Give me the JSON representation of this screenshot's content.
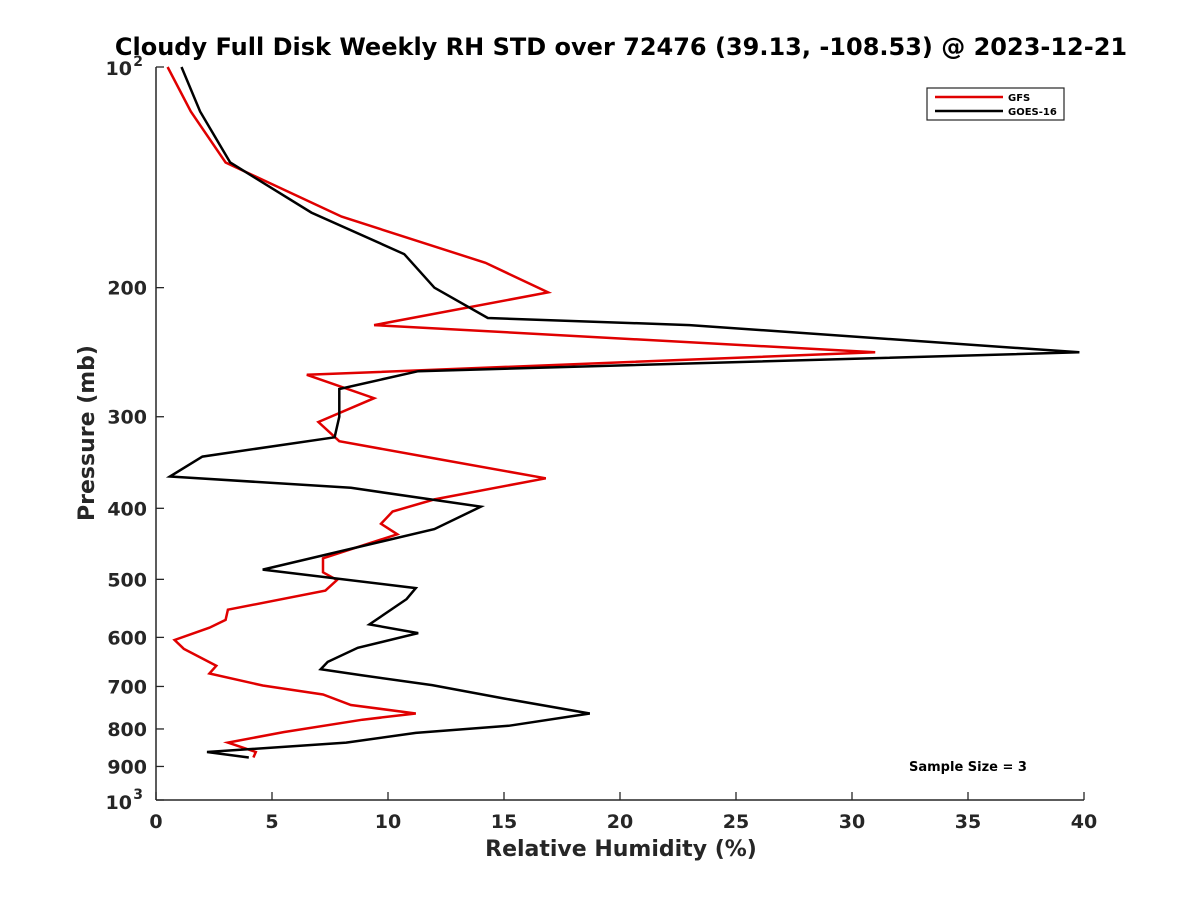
{
  "chart_data": {
    "type": "line",
    "title": "Cloudy Full Disk Weekly RH STD over 72476 (39.13, -108.53) @ 2023-12-21",
    "xlabel": "Relative Humidity (%)",
    "ylabel": "Pressure (mb)",
    "xlim": [
      0,
      40
    ],
    "ylim": [
      100,
      1000
    ],
    "y_scale": "log",
    "y_reversed": true,
    "grid": false,
    "legend_position": "top-right",
    "x_ticks": [
      "0",
      "5",
      "10",
      "15",
      "20",
      "25",
      "30",
      "35",
      "40"
    ],
    "y_ticks": [
      {
        "value": 100,
        "base": "10",
        "exp": "2"
      },
      {
        "value": 200,
        "label": "200"
      },
      {
        "value": 300,
        "label": "300"
      },
      {
        "value": 400,
        "label": "400"
      },
      {
        "value": 500,
        "label": "500"
      },
      {
        "value": 600,
        "label": "600"
      },
      {
        "value": 700,
        "label": "700"
      },
      {
        "value": 800,
        "label": "800"
      },
      {
        "value": 900,
        "label": "900"
      },
      {
        "value": 1000,
        "base": "10",
        "exp": "3"
      }
    ],
    "annotation": "Sample Size = 3",
    "series": [
      {
        "name": "GFS",
        "color": "#e00000",
        "points": [
          [
            0.5,
            100
          ],
          [
            1.5,
            115
          ],
          [
            3.0,
            135
          ],
          [
            8.0,
            160
          ],
          [
            14.2,
            185
          ],
          [
            16.9,
            203
          ],
          [
            9.4,
            225
          ],
          [
            31.0,
            245
          ],
          [
            6.5,
            263
          ],
          [
            9.4,
            283
          ],
          [
            7.0,
            305
          ],
          [
            7.9,
            324
          ],
          [
            12.0,
            342
          ],
          [
            16.8,
            364
          ],
          [
            12.0,
            389
          ],
          [
            10.2,
            404
          ],
          [
            9.7,
            420
          ],
          [
            10.4,
            434
          ],
          [
            7.2,
            468
          ],
          [
            7.2,
            489
          ],
          [
            7.8,
            501
          ],
          [
            7.3,
            518
          ],
          [
            3.1,
            550
          ],
          [
            3.0,
            568
          ],
          [
            2.3,
            582
          ],
          [
            0.8,
            605
          ],
          [
            1.2,
            622
          ],
          [
            2.6,
            656
          ],
          [
            2.3,
            672
          ],
          [
            4.6,
            698
          ],
          [
            7.2,
            718
          ],
          [
            8.4,
            742
          ],
          [
            11.2,
            762
          ],
          [
            8.9,
            777
          ],
          [
            5.5,
            808
          ],
          [
            3.1,
            835
          ],
          [
            4.3,
            860
          ],
          [
            4.2,
            875
          ]
        ]
      },
      {
        "name": "GOES-16",
        "color": "#000000",
        "points": [
          [
            1.1,
            100
          ],
          [
            1.9,
            115
          ],
          [
            3.2,
            135
          ],
          [
            6.7,
            158
          ],
          [
            10.7,
            180
          ],
          [
            12.0,
            200
          ],
          [
            14.3,
            220
          ],
          [
            23.0,
            225
          ],
          [
            39.8,
            245
          ],
          [
            11.3,
            260
          ],
          [
            7.9,
            275
          ],
          [
            7.9,
            300
          ],
          [
            7.7,
            320
          ],
          [
            2.0,
            340
          ],
          [
            0.6,
            362
          ],
          [
            8.4,
            375
          ],
          [
            14.0,
            398
          ],
          [
            12.0,
            427
          ],
          [
            4.6,
            485
          ],
          [
            11.2,
            514
          ],
          [
            10.8,
            532
          ],
          [
            9.2,
            576
          ],
          [
            11.3,
            592
          ],
          [
            8.7,
            620
          ],
          [
            7.4,
            648
          ],
          [
            7.1,
            663
          ],
          [
            8.9,
            676
          ],
          [
            11.9,
            697
          ],
          [
            15.0,
            727
          ],
          [
            18.7,
            762
          ],
          [
            15.2,
            792
          ],
          [
            11.2,
            810
          ],
          [
            8.2,
            835
          ],
          [
            2.2,
            860
          ],
          [
            4.0,
            875
          ]
        ]
      }
    ]
  }
}
